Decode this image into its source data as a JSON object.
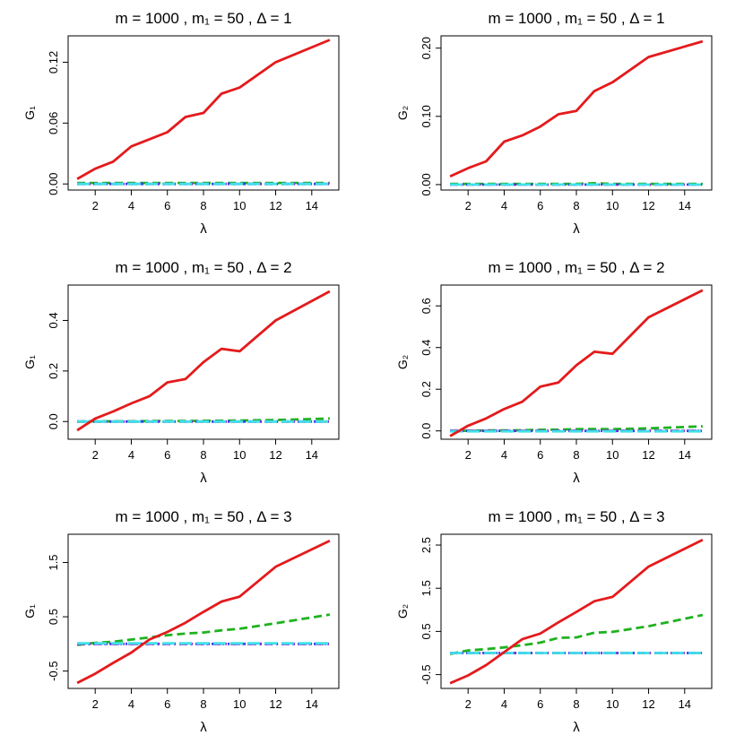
{
  "chart_data": [
    {
      "type": "line",
      "title": "m = 1000 ,  m₁ = 50 ,  Δ = 1",
      "xlabel": "λ",
      "ylabel": "G₁",
      "xlim": [
        0.5,
        15.5
      ],
      "ylim": [
        -0.006,
        0.146
      ],
      "xticks": [
        2,
        4,
        6,
        8,
        10,
        12,
        14
      ],
      "yticks": [
        0.0,
        0.06,
        0.12
      ],
      "ytick_labels": [
        "0.00",
        "0.06",
        "0.12"
      ],
      "x": [
        1,
        2,
        3,
        4,
        5,
        6,
        7,
        8,
        9,
        10,
        12,
        15
      ],
      "series": [
        {
          "name": "red",
          "color": "#e41a1c",
          "dash": "",
          "width": 2.8,
          "values": [
            0.005,
            0.015,
            0.022,
            0.037,
            0.044,
            0.051,
            0.066,
            0.07,
            0.089,
            0.095,
            0.12,
            0.142
          ]
        },
        {
          "name": "green",
          "color": "#1fb21f",
          "dash": "9 5",
          "width": 2.8,
          "values": [
            0.001,
            0.001,
            0.001,
            0.001,
            0.001,
            0.001,
            0.001,
            0.001,
            0.001,
            0.001,
            0.001,
            0.001
          ]
        },
        {
          "name": "blue",
          "color": "#2b3cf0",
          "dash": "2 4",
          "width": 2.8,
          "values": [
            0.0,
            0.0,
            0.0,
            0.0,
            0.0,
            0.0,
            0.0,
            0.0,
            0.0,
            0.0,
            0.0,
            0.0
          ]
        },
        {
          "name": "purple",
          "color": "#8a22d6",
          "dash": "9 4 2 4",
          "width": 2.8,
          "values": [
            0.0,
            0.0,
            0.0,
            0.0,
            0.0,
            0.0,
            0.0,
            0.0,
            0.0,
            0.0,
            0.0,
            0.0
          ]
        },
        {
          "name": "cyan",
          "color": "#40e0e8",
          "dash": "14 5",
          "width": 2.8,
          "values": [
            0.0,
            0.0,
            0.0,
            0.0,
            0.0,
            0.0,
            0.0,
            0.0,
            0.0,
            0.0,
            0.0,
            0.0
          ]
        }
      ]
    },
    {
      "type": "line",
      "title": "m = 1000 ,  m₁ = 50 ,  Δ = 1",
      "xlabel": "λ",
      "ylabel": "G₂",
      "xlim": [
        0.5,
        15.5
      ],
      "ylim": [
        -0.008,
        0.218
      ],
      "xticks": [
        2,
        4,
        6,
        8,
        10,
        12,
        14
      ],
      "yticks": [
        0.0,
        0.1,
        0.2
      ],
      "ytick_labels": [
        "0.00",
        "0.10",
        "0.20"
      ],
      "x": [
        1,
        2,
        3,
        4,
        5,
        6,
        7,
        8,
        9,
        10,
        12,
        15
      ],
      "series": [
        {
          "name": "red",
          "color": "#e41a1c",
          "dash": "",
          "width": 2.8,
          "values": [
            0.012,
            0.024,
            0.034,
            0.063,
            0.072,
            0.085,
            0.103,
            0.108,
            0.137,
            0.15,
            0.187,
            0.21
          ]
        },
        {
          "name": "green",
          "color": "#1fb21f",
          "dash": "9 5",
          "width": 2.8,
          "values": [
            0.001,
            0.001,
            0.001,
            0.001,
            0.001,
            0.001,
            0.001,
            0.001,
            0.002,
            0.001,
            0.001,
            0.001
          ]
        },
        {
          "name": "blue",
          "color": "#2b3cf0",
          "dash": "2 4",
          "width": 2.8,
          "values": [
            0.0,
            0.0,
            0.0,
            0.0,
            0.0,
            0.0,
            0.0,
            0.0,
            0.0,
            0.0,
            0.0,
            0.0
          ]
        },
        {
          "name": "purple",
          "color": "#8a22d6",
          "dash": "9 4 2 4",
          "width": 2.8,
          "values": [
            0.0,
            0.0,
            0.0,
            0.0,
            0.0,
            0.0,
            0.0,
            0.0,
            0.0,
            0.0,
            0.0,
            0.0
          ]
        },
        {
          "name": "cyan",
          "color": "#40e0e8",
          "dash": "14 5",
          "width": 2.8,
          "values": [
            0.0,
            0.0,
            0.0,
            0.0,
            0.0,
            0.0,
            0.0,
            0.0,
            0.0,
            0.0,
            0.0,
            0.0
          ]
        }
      ]
    },
    {
      "type": "line",
      "title": "m = 1000 ,  m₁ = 50 ,  Δ = 2",
      "xlabel": "λ",
      "ylabel": "G₁",
      "xlim": [
        0.5,
        15.5
      ],
      "ylim": [
        -0.07,
        0.54
      ],
      "xticks": [
        2,
        4,
        6,
        8,
        10,
        12,
        14
      ],
      "yticks": [
        0.0,
        0.2,
        0.4
      ],
      "ytick_labels": [
        "0.0",
        "0.2",
        "0.4"
      ],
      "x": [
        1,
        2,
        3,
        4,
        5,
        6,
        7,
        8,
        9,
        10,
        12,
        15
      ],
      "series": [
        {
          "name": "red",
          "color": "#e41a1c",
          "dash": "",
          "width": 2.8,
          "values": [
            -0.035,
            0.012,
            0.04,
            0.072,
            0.1,
            0.155,
            0.168,
            0.235,
            0.288,
            0.278,
            0.4,
            0.515
          ]
        },
        {
          "name": "green",
          "color": "#1fb21f",
          "dash": "9 5",
          "width": 2.8,
          "values": [
            0.0,
            0.001,
            0.001,
            0.001,
            0.002,
            0.002,
            0.002,
            0.003,
            0.003,
            0.004,
            0.006,
            0.012
          ]
        },
        {
          "name": "blue",
          "color": "#2b3cf0",
          "dash": "2 4",
          "width": 2.8,
          "values": [
            0.0,
            0.0,
            0.0,
            0.0,
            0.0,
            0.0,
            0.0,
            0.0,
            0.0,
            0.0,
            0.0,
            0.0
          ]
        },
        {
          "name": "purple",
          "color": "#8a22d6",
          "dash": "9 4 2 4",
          "width": 2.8,
          "values": [
            0.0,
            0.0,
            0.0,
            0.0,
            0.0,
            0.0,
            0.0,
            0.0,
            0.0,
            0.0,
            0.0,
            0.0
          ]
        },
        {
          "name": "cyan",
          "color": "#40e0e8",
          "dash": "14 5",
          "width": 2.8,
          "values": [
            0.0,
            0.0,
            0.0,
            0.0,
            0.0,
            0.0,
            0.0,
            0.0,
            0.0,
            0.0,
            0.0,
            0.0
          ]
        }
      ]
    },
    {
      "type": "line",
      "title": "m = 1000 ,  m₁ = 50 ,  Δ = 2",
      "xlabel": "λ",
      "ylabel": "G₂",
      "xlim": [
        0.5,
        15.5
      ],
      "ylim": [
        -0.04,
        0.7
      ],
      "xticks": [
        2,
        4,
        6,
        8,
        10,
        12,
        14
      ],
      "yticks": [
        0.0,
        0.2,
        0.4,
        0.6
      ],
      "ytick_labels": [
        "0.0",
        "0.2",
        "0.4",
        "0.6"
      ],
      "x": [
        1,
        2,
        3,
        4,
        5,
        6,
        7,
        8,
        9,
        10,
        12,
        15
      ],
      "series": [
        {
          "name": "red",
          "color": "#e41a1c",
          "dash": "",
          "width": 2.8,
          "values": [
            -0.025,
            0.025,
            0.06,
            0.105,
            0.14,
            0.212,
            0.232,
            0.315,
            0.38,
            0.37,
            0.545,
            0.675
          ]
        },
        {
          "name": "green",
          "color": "#1fb21f",
          "dash": "9 5",
          "width": 2.8,
          "values": [
            0.0,
            0.001,
            0.002,
            0.002,
            0.003,
            0.005,
            0.006,
            0.008,
            0.009,
            0.008,
            0.012,
            0.022
          ]
        },
        {
          "name": "blue",
          "color": "#2b3cf0",
          "dash": "2 4",
          "width": 2.8,
          "values": [
            0.0,
            0.0,
            0.0,
            0.0,
            0.0,
            0.0,
            0.0,
            0.0,
            0.0,
            0.0,
            0.0,
            0.0
          ]
        },
        {
          "name": "purple",
          "color": "#8a22d6",
          "dash": "9 4 2 4",
          "width": 2.8,
          "values": [
            0.0,
            0.0,
            0.0,
            0.0,
            0.0,
            0.0,
            0.0,
            0.0,
            0.0,
            0.0,
            0.0,
            0.0
          ]
        },
        {
          "name": "cyan",
          "color": "#40e0e8",
          "dash": "14 5",
          "width": 2.8,
          "values": [
            -0.002,
            -0.002,
            -0.002,
            -0.002,
            -0.002,
            -0.002,
            -0.002,
            -0.002,
            -0.002,
            -0.002,
            -0.002,
            -0.002
          ]
        }
      ]
    },
    {
      "type": "line",
      "title": "m = 1000 ,  m₁ = 50 ,  Δ = 3",
      "xlabel": "λ",
      "ylabel": "G₁",
      "xlim": [
        0.5,
        15.5
      ],
      "ylim": [
        -0.82,
        2.02
      ],
      "xticks": [
        2,
        4,
        6,
        8,
        10,
        12,
        14
      ],
      "yticks": [
        -0.5,
        0.5,
        1.5
      ],
      "ytick_labels": [
        "-0.5",
        "0.5",
        "1.5"
      ],
      "x": [
        1,
        2,
        3,
        4,
        5,
        6,
        7,
        8,
        9,
        10,
        12,
        15
      ],
      "series": [
        {
          "name": "red",
          "color": "#e41a1c",
          "dash": "",
          "width": 2.8,
          "values": [
            -0.72,
            -0.55,
            -0.35,
            -0.16,
            0.08,
            0.22,
            0.39,
            0.59,
            0.78,
            0.87,
            1.42,
            1.9
          ]
        },
        {
          "name": "green",
          "color": "#1fb21f",
          "dash": "9 5",
          "width": 2.8,
          "values": [
            -0.02,
            0.02,
            0.04,
            0.08,
            0.12,
            0.16,
            0.19,
            0.21,
            0.25,
            0.28,
            0.38,
            0.54
          ]
        },
        {
          "name": "blue",
          "color": "#2b3cf0",
          "dash": "2 4",
          "width": 2.8,
          "values": [
            0.0,
            0.0,
            0.0,
            0.0,
            0.0,
            0.0,
            0.0,
            0.0,
            0.0,
            0.0,
            0.0,
            0.0
          ]
        },
        {
          "name": "purple",
          "color": "#8a22d6",
          "dash": "9 4 2 4",
          "width": 2.8,
          "values": [
            0.0,
            0.0,
            0.0,
            0.0,
            0.0,
            0.0,
            0.0,
            0.0,
            0.0,
            0.0,
            0.0,
            0.0
          ]
        },
        {
          "name": "cyan",
          "color": "#40e0e8",
          "dash": "14 5",
          "width": 2.8,
          "values": [
            0.01,
            0.01,
            0.01,
            0.01,
            0.01,
            0.01,
            0.01,
            0.01,
            0.01,
            0.01,
            0.01,
            0.01
          ]
        }
      ]
    },
    {
      "type": "line",
      "title": "m = 1000 ,  m₁ = 50 ,  Δ = 3",
      "xlabel": "λ",
      "ylabel": "G₂",
      "xlim": [
        0.5,
        15.5
      ],
      "ylim": [
        -0.82,
        2.75
      ],
      "xticks": [
        2,
        4,
        6,
        8,
        10,
        12,
        14
      ],
      "yticks": [
        -0.5,
        0.5,
        1.5,
        2.5
      ],
      "ytick_labels": [
        "-0.5",
        "0.5",
        "1.5",
        "2.5"
      ],
      "x": [
        1,
        2,
        3,
        4,
        5,
        6,
        7,
        8,
        9,
        10,
        12,
        15
      ],
      "series": [
        {
          "name": "red",
          "color": "#e41a1c",
          "dash": "",
          "width": 2.8,
          "values": [
            -0.7,
            -0.52,
            -0.28,
            0.02,
            0.32,
            0.45,
            0.71,
            0.95,
            1.2,
            1.3,
            2.0,
            2.62
          ]
        },
        {
          "name": "green",
          "color": "#1fb21f",
          "dash": "9 5",
          "width": 2.8,
          "values": [
            -0.02,
            0.06,
            0.09,
            0.13,
            0.18,
            0.24,
            0.35,
            0.36,
            0.47,
            0.49,
            0.62,
            0.88
          ]
        },
        {
          "name": "blue",
          "color": "#2b3cf0",
          "dash": "2 4",
          "width": 2.8,
          "values": [
            0.0,
            0.0,
            0.0,
            0.0,
            0.0,
            0.0,
            0.0,
            0.0,
            0.0,
            0.0,
            0.0,
            0.0
          ]
        },
        {
          "name": "purple",
          "color": "#8a22d6",
          "dash": "9 4 2 4",
          "width": 2.8,
          "values": [
            0.0,
            0.0,
            0.0,
            0.0,
            0.0,
            0.0,
            0.0,
            0.0,
            0.0,
            0.0,
            0.0,
            0.0
          ]
        },
        {
          "name": "cyan",
          "color": "#40e0e8",
          "dash": "14 5",
          "width": 2.8,
          "values": [
            0.0,
            0.0,
            0.0,
            0.0,
            0.0,
            0.0,
            0.0,
            0.0,
            0.0,
            0.0,
            0.0,
            0.0
          ]
        }
      ]
    }
  ]
}
